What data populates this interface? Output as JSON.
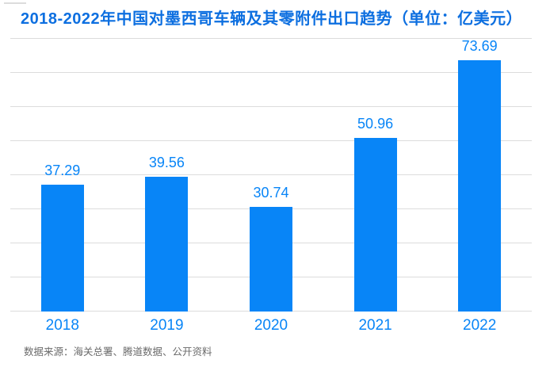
{
  "source_note": "数据来源：海关总署、腾道数据、公开资料",
  "colors": {
    "title": "#0d6fe0",
    "bar": "#0885f7",
    "label": "#0885f7",
    "gridline": "#dcdcdc",
    "source_text": "#6a6a6a"
  },
  "chart_data": {
    "type": "bar",
    "title": "2018-2022年中国对墨西哥车辆及其零附件出口趋势（单位：亿美元）",
    "categories": [
      "2018",
      "2019",
      "2020",
      "2021",
      "2022"
    ],
    "values": [
      37.29,
      39.56,
      30.74,
      50.96,
      73.69
    ],
    "value_label_decimals": 2,
    "xlabel": "",
    "ylabel": "",
    "ylim": [
      0,
      80
    ],
    "grid": true,
    "grid_step": 10,
    "legend": "none",
    "bar_orientation": "vertical"
  }
}
